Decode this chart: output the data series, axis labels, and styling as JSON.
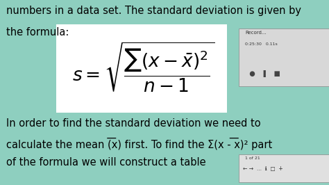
{
  "bg_color": "#8ecfbf",
  "formula_box_color": "#ffffff",
  "text_color": "#000000",
  "top_text_line1": "numbers in a data set. The standard deviation is given by",
  "top_text_line2": "the formula:",
  "bottom_text_line1": "In order to find the standard deviation we need to",
  "bottom_text_line2": "calculate the mean (͞x) first. To find the Σ(x - ͞x)² part",
  "bottom_text_line3": "of the formula we will construct a table",
  "formula_latex": "$s = \\sqrt{\\dfrac{\\sum(x-\\bar{x})^{2}}{n-1}}$",
  "font_size_main": 10.5,
  "font_size_formula": 19,
  "fig_width": 4.74,
  "fig_height": 2.66,
  "dpi": 100,
  "nav_box_color": "#e0e0e0",
  "rec_box_color": "#d8d8d8",
  "widget_edge_color": "#888888",
  "nav_text_color": "#333333"
}
